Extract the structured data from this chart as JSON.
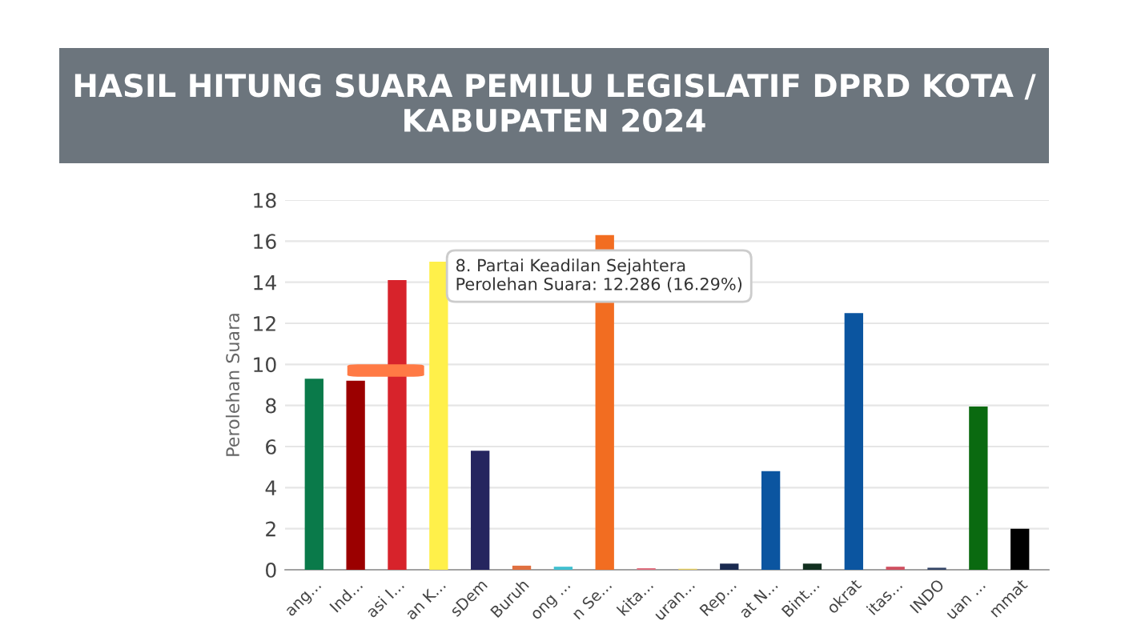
{
  "chart_data": {
    "type": "bar",
    "title": "HASIL HITUNG SUARA PEMILU LEGISLATIF DPRD KOTA / KABUPATEN 2024",
    "ylabel": "Perolehan Suara",
    "categories": [
      "ang...",
      "Ind...",
      "asi I...",
      "an K...",
      "sDem",
      "Buruh",
      "ong ...",
      "n Se...",
      "kita...",
      "uran...",
      "Rep...",
      "at N...",
      "Bint...",
      "okrat",
      "itas...",
      "INDO",
      "uan ...",
      "mmat"
    ],
    "values": [
      9.3,
      9.2,
      14.1,
      15.0,
      5.8,
      0.2,
      0.15,
      16.3,
      0.08,
      0.05,
      0.3,
      4.8,
      0.3,
      12.5,
      0.15,
      0.1,
      7.95,
      2.0
    ],
    "colors": [
      "#0a7a4a",
      "#9b0000",
      "#d7232b",
      "#fff04a",
      "#25255f",
      "#e07040",
      "#40c0d0",
      "#f26d21",
      "#e07080",
      "#e8d060",
      "#1a2a50",
      "#0b55a0",
      "#123020",
      "#0b55a0",
      "#d05060",
      "#334466",
      "#0a6a10",
      "#000000"
    ],
    "annotations": [
      {
        "text": "8. Partai Keadilan Sejahtera\nPerolehan Suara: 12.286 (16.29%)",
        "x": "n Se...",
        "y": 16.3
      }
    ],
    "ylim": [
      0,
      18
    ],
    "yticks": [
      0,
      2,
      4,
      6,
      8,
      10,
      12,
      14,
      16,
      18
    ],
    "grid": "y",
    "legend": false
  }
}
